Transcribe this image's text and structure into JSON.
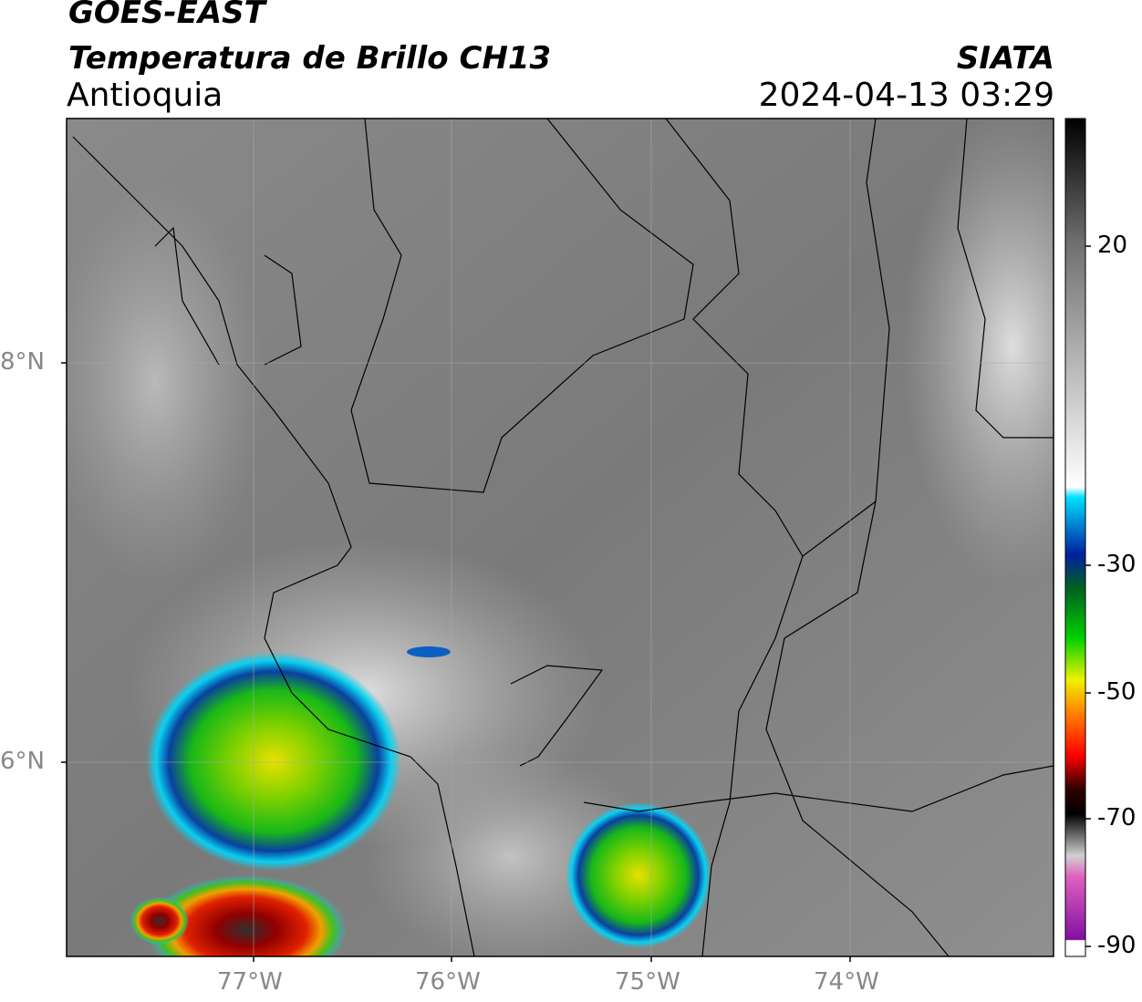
{
  "header": {
    "line1": "GOES-EAST",
    "line2": "Temperatura de Brillo CH13",
    "region": "Antioquia",
    "source": "SIATA",
    "timestamp": "2024-04-13 03:29"
  },
  "map": {
    "lat_labels": [
      "8°N",
      "6°N"
    ],
    "lon_labels": [
      "77°W",
      "76°W",
      "75°W",
      "74°W"
    ]
  },
  "colorbar": {
    "ticks": [
      "20",
      "-30",
      "-50",
      "-70",
      "-90"
    ]
  }
}
